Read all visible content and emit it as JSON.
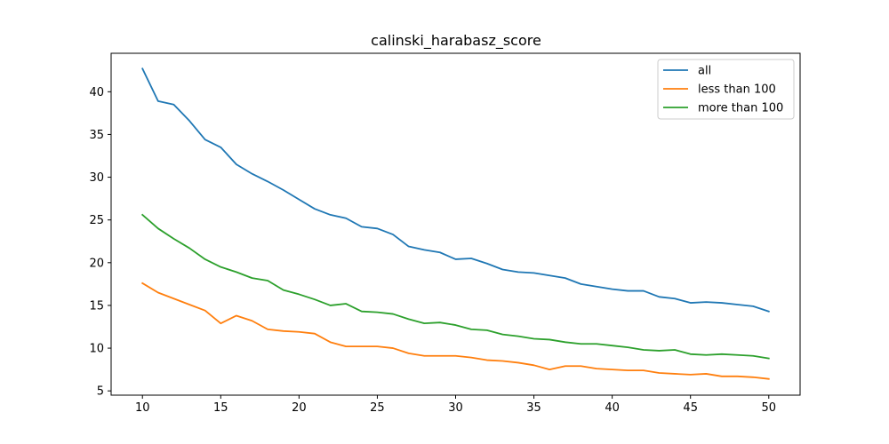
{
  "chart_data": {
    "type": "line",
    "title": "calinski_harabasz_score",
    "xlabel": "",
    "ylabel": "",
    "xlim": [
      8,
      52
    ],
    "ylim": [
      4.5,
      44.5
    ],
    "x_ticks": [
      10,
      15,
      20,
      25,
      30,
      35,
      40,
      45,
      50
    ],
    "y_ticks": [
      5,
      10,
      15,
      20,
      25,
      30,
      35,
      40
    ],
    "grid": false,
    "legend_position": "top-right",
    "x": [
      10,
      11,
      12,
      13,
      14,
      15,
      16,
      17,
      18,
      19,
      20,
      21,
      22,
      23,
      24,
      25,
      26,
      27,
      28,
      29,
      30,
      31,
      32,
      33,
      34,
      35,
      36,
      37,
      38,
      39,
      40,
      41,
      42,
      43,
      44,
      45,
      46,
      47,
      48,
      49,
      50
    ],
    "series": [
      {
        "name": "all",
        "color": "#1f77b4",
        "values": [
          42.7,
          38.9,
          38.5,
          36.6,
          34.4,
          33.5,
          31.5,
          30.4,
          29.5,
          28.5,
          27.4,
          26.3,
          25.6,
          25.2,
          24.2,
          24.0,
          23.3,
          21.9,
          21.5,
          21.2,
          20.4,
          20.5,
          19.9,
          19.2,
          18.9,
          18.8,
          18.5,
          18.2,
          17.5,
          17.2,
          16.9,
          16.7,
          16.7,
          16.0,
          15.8,
          15.3,
          15.4,
          15.3,
          15.1,
          14.9,
          14.3
        ]
      },
      {
        "name": "less than 100",
        "color": "#ff7f0e",
        "values": [
          17.6,
          16.5,
          15.8,
          15.1,
          14.4,
          12.9,
          13.8,
          13.2,
          12.2,
          12.0,
          11.9,
          11.7,
          10.7,
          10.2,
          10.2,
          10.2,
          10.0,
          9.4,
          9.1,
          9.1,
          9.1,
          8.9,
          8.6,
          8.5,
          8.3,
          8.0,
          7.5,
          7.9,
          7.9,
          7.6,
          7.5,
          7.4,
          7.4,
          7.1,
          7.0,
          6.9,
          7.0,
          6.7,
          6.7,
          6.6,
          6.4
        ]
      },
      {
        "name": "more than 100",
        "color": "#2ca02c",
        "values": [
          25.6,
          24.0,
          22.8,
          21.7,
          20.4,
          19.5,
          18.9,
          18.2,
          17.9,
          16.8,
          16.3,
          15.7,
          15.0,
          15.2,
          14.3,
          14.2,
          14.0,
          13.4,
          12.9,
          13.0,
          12.7,
          12.2,
          12.1,
          11.6,
          11.4,
          11.1,
          11.0,
          10.7,
          10.5,
          10.5,
          10.3,
          10.1,
          9.8,
          9.7,
          9.8,
          9.3,
          9.2,
          9.3,
          9.2,
          9.1,
          8.8
        ]
      }
    ]
  }
}
